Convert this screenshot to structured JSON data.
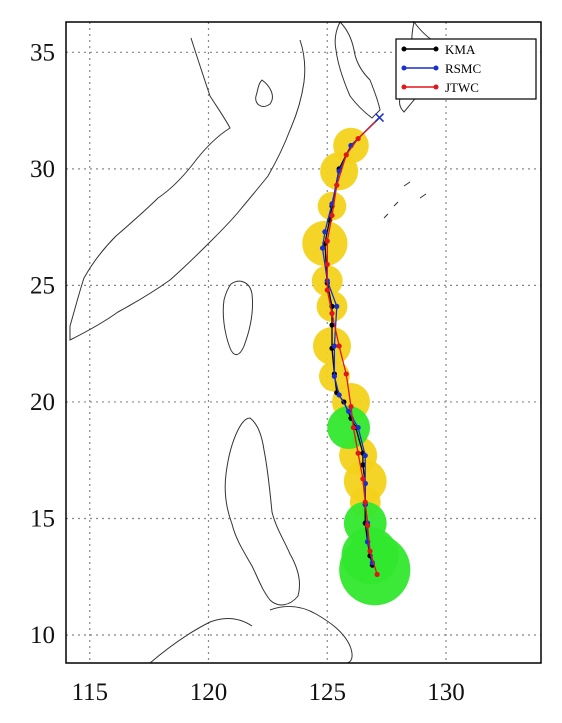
{
  "chart_data": {
    "type": "line",
    "title": "",
    "xlabel": "",
    "ylabel": "",
    "xlim": [
      114,
      134
    ],
    "ylim": [
      8.8,
      36.3
    ],
    "xticks": [
      "115",
      "120",
      "125",
      "130"
    ],
    "yticks": [
      "10",
      "15",
      "20",
      "25",
      "30",
      "35"
    ],
    "grid": true,
    "legend_position": "top-right",
    "colors": {
      "KMA": "#000000",
      "RSMC": "#1a2fd0",
      "JTWC": "#e0161a",
      "intensity_typhoon": "#f3d21a",
      "intensity_strong": "#31e82d"
    },
    "series": [
      {
        "name": "KMA",
        "points": [
          [
            126.9,
            13.0
          ],
          [
            126.8,
            13.4
          ],
          [
            126.7,
            14.0
          ],
          [
            126.6,
            14.8
          ],
          [
            126.6,
            15.6
          ],
          [
            126.6,
            16.5
          ],
          [
            126.5,
            17.3
          ],
          [
            126.5,
            17.8
          ],
          [
            126.2,
            18.9
          ],
          [
            126.0,
            19.3
          ],
          [
            125.7,
            20.0
          ],
          [
            125.4,
            20.4
          ],
          [
            125.3,
            21.2
          ],
          [
            125.2,
            22.3
          ],
          [
            125.2,
            23.3
          ],
          [
            125.2,
            24.1
          ],
          [
            125.0,
            25.1
          ],
          [
            124.9,
            26.8
          ],
          [
            125.1,
            27.8
          ],
          [
            125.2,
            28.4
          ],
          [
            125.5,
            30.0
          ],
          [
            126.0,
            31.0
          ],
          [
            127.2,
            32.2
          ]
        ]
      },
      {
        "name": "RSMC",
        "points": [
          [
            126.9,
            13.1
          ],
          [
            126.7,
            14.0
          ],
          [
            126.7,
            14.8
          ],
          [
            126.6,
            15.6
          ],
          [
            126.6,
            16.5
          ],
          [
            126.6,
            17.7
          ],
          [
            126.3,
            18.9
          ],
          [
            125.9,
            19.6
          ],
          [
            125.5,
            20.3
          ],
          [
            125.3,
            21.1
          ],
          [
            125.3,
            22.4
          ],
          [
            125.4,
            24.1
          ],
          [
            125.0,
            25.2
          ],
          [
            124.8,
            26.6
          ],
          [
            124.9,
            27.3
          ],
          [
            125.2,
            28.5
          ],
          [
            125.5,
            29.9
          ],
          [
            126.0,
            31.0
          ],
          [
            127.2,
            32.2
          ]
        ]
      },
      {
        "name": "JTWC",
        "points": [
          [
            127.1,
            12.6
          ],
          [
            126.8,
            13.6
          ],
          [
            126.7,
            14.7
          ],
          [
            126.6,
            15.7
          ],
          [
            126.5,
            16.7
          ],
          [
            126.3,
            17.8
          ],
          [
            126.1,
            18.9
          ],
          [
            126.0,
            19.8
          ],
          [
            125.8,
            21.2
          ],
          [
            125.5,
            22.4
          ],
          [
            125.2,
            23.8
          ],
          [
            125.0,
            24.8
          ],
          [
            125.0,
            25.9
          ],
          [
            125.0,
            26.9
          ],
          [
            125.2,
            28.0
          ],
          [
            125.4,
            29.3
          ],
          [
            125.8,
            30.6
          ],
          [
            126.3,
            31.3
          ],
          [
            127.2,
            32.2
          ]
        ]
      }
    ],
    "intensity_markers": [
      {
        "lon": 127.0,
        "lat": 12.8,
        "size": 3.0,
        "category": "intensity_strong"
      },
      {
        "lon": 126.8,
        "lat": 13.4,
        "size": 2.4,
        "category": "intensity_strong"
      },
      {
        "lon": 126.6,
        "lat": 14.8,
        "size": 1.8,
        "category": "intensity_strong"
      },
      {
        "lon": 125.9,
        "lat": 18.9,
        "size": 1.8,
        "category": "intensity_strong"
      },
      {
        "lon": 126.6,
        "lat": 15.7,
        "size": 1.3,
        "category": "intensity_typhoon"
      },
      {
        "lon": 126.6,
        "lat": 16.6,
        "size": 1.8,
        "category": "intensity_typhoon"
      },
      {
        "lon": 126.3,
        "lat": 17.7,
        "size": 1.6,
        "category": "intensity_typhoon"
      },
      {
        "lon": 126.0,
        "lat": 20.0,
        "size": 1.6,
        "category": "intensity_typhoon"
      },
      {
        "lon": 125.3,
        "lat": 21.1,
        "size": 1.3,
        "category": "intensity_typhoon"
      },
      {
        "lon": 125.2,
        "lat": 22.4,
        "size": 1.6,
        "category": "intensity_typhoon"
      },
      {
        "lon": 125.2,
        "lat": 24.1,
        "size": 1.3,
        "category": "intensity_typhoon"
      },
      {
        "lon": 125.0,
        "lat": 25.2,
        "size": 1.3,
        "category": "intensity_typhoon"
      },
      {
        "lon": 124.9,
        "lat": 26.8,
        "size": 1.9,
        "category": "intensity_typhoon"
      },
      {
        "lon": 125.2,
        "lat": 28.4,
        "size": 1.2,
        "category": "intensity_typhoon"
      },
      {
        "lon": 125.5,
        "lat": 29.9,
        "size": 1.6,
        "category": "intensity_typhoon"
      },
      {
        "lon": 126.0,
        "lat": 31.0,
        "size": 1.5,
        "category": "intensity_typhoon"
      }
    ]
  }
}
